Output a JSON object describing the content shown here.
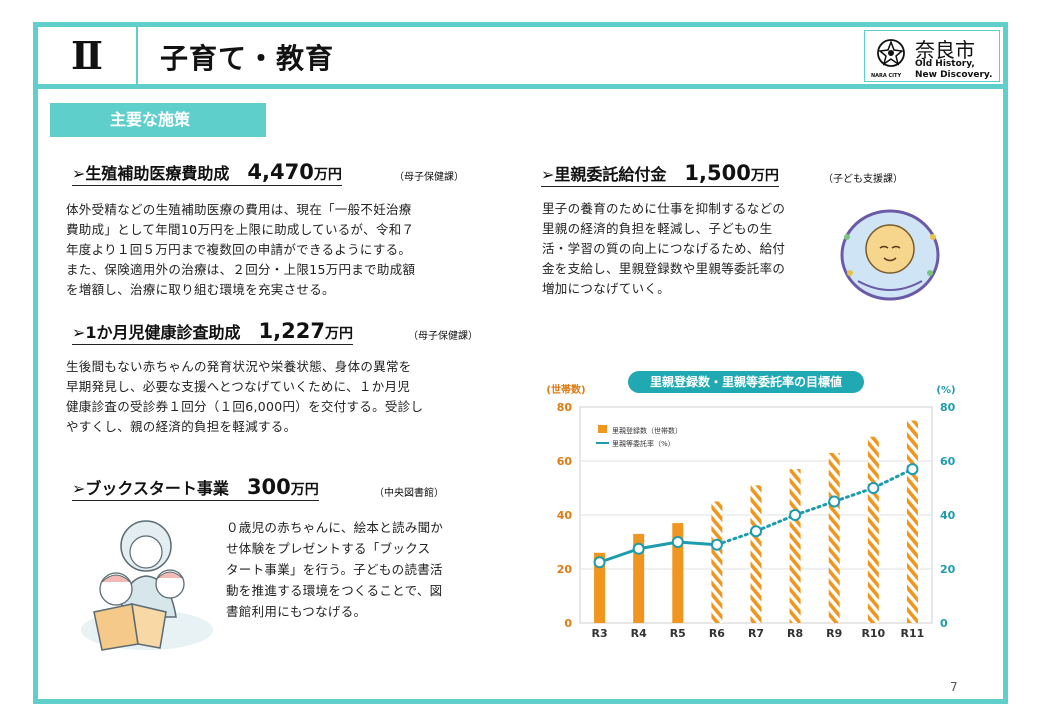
{
  "header": {
    "section_number": "Ⅱ",
    "title": "子育て・教育",
    "logo": {
      "city": "奈良市",
      "tagline_1": "Old History,",
      "tagline_2": "New Discovery.",
      "english": "NARA CITY"
    }
  },
  "section_badge": "主要な施策",
  "items": [
    {
      "name": "➢生殖補助医療費助成",
      "amount": "4,470",
      "unit": "万円",
      "dept": "（母子保健課）",
      "lines": [
        "体外受精などの生殖補助医療の費用は、現在「一般不妊治療",
        "費助成」として年間10万円を上限に助成しているが、令和７",
        "年度より１回５万円まで複数回の申請ができるようにする。",
        "また、保険適用外の治療は、２回分・上限15万円まで助成額",
        "を増額し、治療に取り組む環境を充実させる。"
      ]
    },
    {
      "name": "➢1か月児健康診査助成",
      "amount": "1,227",
      "unit": "万円",
      "dept": "（母子保健課）",
      "lines": [
        "生後間もない赤ちゃんの発育状況や栄養状態、身体の異常を",
        "早期発見し、必要な支援へとつなげていくために、１か月児",
        "健康診査の受診券１回分（１回6,000円）を交付する。受診し",
        "やすくし、親の経済的負担を軽減する。"
      ]
    },
    {
      "name": "➢ブックスタート事業",
      "amount": "300",
      "unit": "万円",
      "dept": "（中央図書館）",
      "lines": [
        "０歳児の赤ちゃんに、絵本と読み聞か",
        "せ体験をプレゼントする「ブックス",
        "タート事業」を行う。子どもの読書活",
        "動を推進する環境をつくることで、図",
        "書館利用にもつなげる。"
      ]
    },
    {
      "name": "➢里親委託給付金",
      "amount": "1,500",
      "unit": "万円",
      "dept": "（子ども支援課）",
      "lines": [
        "里子の養育のために仕事を抑制するなどの",
        "里親の経済的負担を軽減し、子どもの生",
        "活・学習の質の向上につなげるため、給付",
        "金を支給し、里親登録数や里親等委託率の",
        "増加につなげていく。"
      ]
    }
  ],
  "chart_data": {
    "type": "bar",
    "title": "里親登録数・里親等委託率の目標値",
    "categories": [
      "R3",
      "R4",
      "R5",
      "R6",
      "R7",
      "R8",
      "R9",
      "R10",
      "R11"
    ],
    "y_left_label": "(世帯数)",
    "y_right_label": "(%)",
    "ylim": [
      0,
      80
    ],
    "yticks": [
      0,
      20,
      40,
      60,
      80
    ],
    "series": [
      {
        "name": "里親登録数（世帯数）",
        "type": "bar",
        "axis": "left",
        "values": [
          26,
          33,
          37,
          45,
          51,
          57,
          63,
          69,
          75
        ],
        "projected_from_index": 3,
        "color": "#f0961e"
      },
      {
        "name": "里親等委託率（%）",
        "type": "line",
        "axis": "right",
        "values": [
          22.5,
          27.5,
          30,
          29,
          34,
          40,
          45,
          50,
          57
        ],
        "projected_from_index": 3,
        "color": "#1e9cad"
      }
    ],
    "legend_position": "top-left"
  },
  "page_number": "7"
}
